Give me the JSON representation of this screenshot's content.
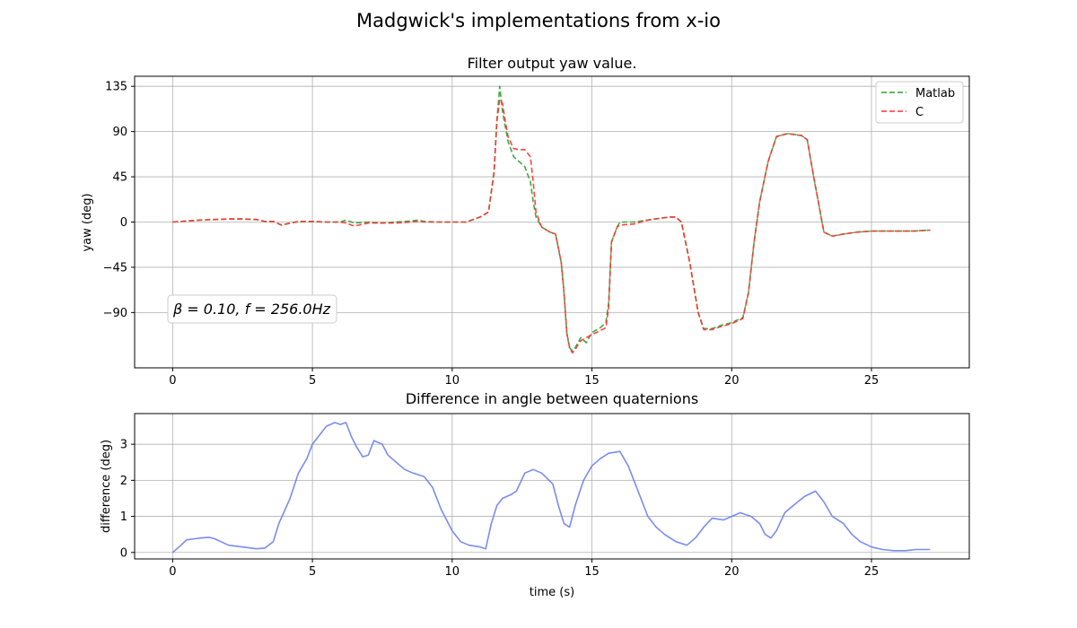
{
  "figure": {
    "suptitle": "Madgwick's implementations from x-io"
  },
  "chart_data": [
    {
      "type": "line",
      "title": "Filter output yaw value.",
      "xlabel": "",
      "ylabel": "yaw (deg)",
      "xlim": [
        -1.36,
        28.5
      ],
      "ylim": [
        -145,
        145
      ],
      "xticks": [
        0,
        5,
        10,
        15,
        20,
        25
      ],
      "yticks": [
        135,
        90,
        45,
        0,
        -45,
        -90
      ],
      "ytick_labels": [
        "135",
        "90",
        "45",
        "0",
        "−45",
        "−90"
      ],
      "grid": true,
      "legend_position": "upper-right",
      "annotation": "β = 0.10,  f = 256.0Hz",
      "series": [
        {
          "name": "Matlab",
          "color": "#2ca02c",
          "style": "dashed",
          "points": [
            [
              0,
              0
            ],
            [
              0.5,
              1
            ],
            [
              1,
              2
            ],
            [
              1.5,
              2.5
            ],
            [
              2,
              3
            ],
            [
              2.5,
              3
            ],
            [
              3,
              2.5
            ],
            [
              3.3,
              0.5
            ],
            [
              3.6,
              0.5
            ],
            [
              3.9,
              -3
            ],
            [
              4.2,
              -1
            ],
            [
              4.5,
              0.5
            ],
            [
              5,
              0.5
            ],
            [
              5.5,
              0
            ],
            [
              6,
              0
            ],
            [
              6.2,
              2
            ],
            [
              6.5,
              -1
            ],
            [
              7,
              0
            ],
            [
              7.5,
              -1
            ],
            [
              8,
              0
            ],
            [
              8.5,
              1
            ],
            [
              8.8,
              2
            ],
            [
              9,
              0.5
            ],
            [
              9.5,
              0
            ],
            [
              10,
              0
            ],
            [
              10.5,
              0
            ],
            [
              11,
              5
            ],
            [
              11.3,
              10
            ],
            [
              11.5,
              50
            ],
            [
              11.6,
              100
            ],
            [
              11.7,
              135
            ],
            [
              11.8,
              110
            ],
            [
              11.9,
              95
            ],
            [
              12,
              80
            ],
            [
              12.2,
              65
            ],
            [
              12.4,
              60
            ],
            [
              12.6,
              55
            ],
            [
              12.8,
              40
            ],
            [
              12.9,
              20
            ],
            [
              13,
              5
            ],
            [
              13.2,
              -5
            ],
            [
              13.5,
              -10
            ],
            [
              13.7,
              -12
            ],
            [
              13.9,
              -40
            ],
            [
              14,
              -70
            ],
            [
              14.1,
              -110
            ],
            [
              14.2,
              -125
            ],
            [
              14.3,
              -128
            ],
            [
              14.4,
              -125
            ],
            [
              14.5,
              -120
            ],
            [
              14.6,
              -115
            ],
            [
              14.8,
              -120
            ],
            [
              15,
              -110
            ],
            [
              15.3,
              -105
            ],
            [
              15.5,
              -100
            ],
            [
              15.6,
              -80
            ],
            [
              15.7,
              -20
            ],
            [
              15.9,
              -5
            ],
            [
              16,
              0
            ],
            [
              16.5,
              0
            ],
            [
              17,
              2
            ],
            [
              17.5,
              4
            ],
            [
              17.8,
              5
            ],
            [
              18,
              5
            ],
            [
              18.2,
              0
            ],
            [
              18.5,
              -40
            ],
            [
              18.8,
              -90
            ],
            [
              19,
              -106
            ],
            [
              19.3,
              -106
            ],
            [
              19.6,
              -103
            ],
            [
              20,
              -100
            ],
            [
              20.4,
              -95
            ],
            [
              20.6,
              -70
            ],
            [
              20.8,
              -20
            ],
            [
              21,
              20
            ],
            [
              21.3,
              60
            ],
            [
              21.6,
              85
            ],
            [
              22,
              88
            ],
            [
              22.5,
              86
            ],
            [
              22.7,
              82
            ],
            [
              22.9,
              50
            ],
            [
              23.1,
              20
            ],
            [
              23.3,
              -10
            ],
            [
              23.6,
              -14
            ],
            [
              24,
              -12
            ],
            [
              24.5,
              -10
            ],
            [
              25,
              -9
            ],
            [
              25.5,
              -9
            ],
            [
              26,
              -9
            ],
            [
              26.5,
              -9
            ],
            [
              27.1,
              -8
            ]
          ]
        },
        {
          "name": "C",
          "color": "#ff3030",
          "style": "dashed",
          "points": [
            [
              0,
              0
            ],
            [
              0.5,
              1
            ],
            [
              1,
              2
            ],
            [
              1.5,
              2.5
            ],
            [
              2,
              3
            ],
            [
              2.5,
              3
            ],
            [
              3,
              2.5
            ],
            [
              3.3,
              0.5
            ],
            [
              3.6,
              0.5
            ],
            [
              3.9,
              -3
            ],
            [
              4.2,
              -1
            ],
            [
              4.5,
              0.5
            ],
            [
              5,
              0.5
            ],
            [
              5.5,
              0
            ],
            [
              6,
              0
            ],
            [
              6.2,
              -1
            ],
            [
              6.5,
              -4
            ],
            [
              7,
              -1
            ],
            [
              7.5,
              -1
            ],
            [
              8,
              -1
            ],
            [
              8.5,
              0
            ],
            [
              8.8,
              0.5
            ],
            [
              9,
              0
            ],
            [
              9.5,
              0
            ],
            [
              10,
              0
            ],
            [
              10.5,
              0
            ],
            [
              11,
              5
            ],
            [
              11.3,
              10
            ],
            [
              11.5,
              50
            ],
            [
              11.6,
              100
            ],
            [
              11.7,
              122
            ],
            [
              11.8,
              118
            ],
            [
              11.9,
              100
            ],
            [
              12,
              85
            ],
            [
              12.2,
              73
            ],
            [
              12.4,
              72
            ],
            [
              12.6,
              72
            ],
            [
              12.8,
              65
            ],
            [
              12.9,
              40
            ],
            [
              13,
              10
            ],
            [
              13.2,
              -5
            ],
            [
              13.5,
              -10
            ],
            [
              13.7,
              -12
            ],
            [
              13.9,
              -40
            ],
            [
              14,
              -70
            ],
            [
              14.1,
              -110
            ],
            [
              14.2,
              -125
            ],
            [
              14.3,
              -130
            ],
            [
              14.4,
              -127
            ],
            [
              14.5,
              -122
            ],
            [
              14.6,
              -118
            ],
            [
              14.8,
              -115
            ],
            [
              15,
              -112
            ],
            [
              15.3,
              -108
            ],
            [
              15.5,
              -105
            ],
            [
              15.6,
              -85
            ],
            [
              15.7,
              -20
            ],
            [
              15.9,
              -5
            ],
            [
              16,
              -3
            ],
            [
              16.5,
              -2
            ],
            [
              17,
              2
            ],
            [
              17.5,
              4
            ],
            [
              17.8,
              5
            ],
            [
              18,
              5
            ],
            [
              18.2,
              0
            ],
            [
              18.5,
              -40
            ],
            [
              18.8,
              -90
            ],
            [
              19,
              -107
            ],
            [
              19.3,
              -107
            ],
            [
              19.6,
              -104
            ],
            [
              20,
              -101
            ],
            [
              20.4,
              -96
            ],
            [
              20.6,
              -70
            ],
            [
              20.8,
              -20
            ],
            [
              21,
              20
            ],
            [
              21.3,
              60
            ],
            [
              21.6,
              85
            ],
            [
              22,
              88
            ],
            [
              22.5,
              86
            ],
            [
              22.7,
              82
            ],
            [
              22.9,
              50
            ],
            [
              23.1,
              20
            ],
            [
              23.3,
              -10
            ],
            [
              23.6,
              -14
            ],
            [
              24,
              -12
            ],
            [
              24.5,
              -10
            ],
            [
              25,
              -9
            ],
            [
              25.5,
              -9
            ],
            [
              26,
              -9
            ],
            [
              26.5,
              -9
            ],
            [
              27.1,
              -8
            ]
          ]
        }
      ]
    },
    {
      "type": "line",
      "title": "Difference in angle between quaternions",
      "xlabel": "time (s)",
      "ylabel": "difference (deg)",
      "xlim": [
        -1.36,
        28.5
      ],
      "ylim": [
        -0.18,
        3.85
      ],
      "xticks": [
        0,
        5,
        10,
        15,
        20,
        25
      ],
      "yticks": [
        0,
        1,
        2,
        3
      ],
      "grid": true,
      "series": [
        {
          "color": "#6b7ff0",
          "style": "solid",
          "points": [
            [
              0,
              0
            ],
            [
              0.3,
              0.2
            ],
            [
              0.5,
              0.35
            ],
            [
              0.8,
              0.38
            ],
            [
              1,
              0.4
            ],
            [
              1.3,
              0.42
            ],
            [
              1.5,
              0.38
            ],
            [
              2,
              0.2
            ],
            [
              2.5,
              0.15
            ],
            [
              3,
              0.1
            ],
            [
              3.3,
              0.12
            ],
            [
              3.6,
              0.3
            ],
            [
              3.8,
              0.8
            ],
            [
              4.2,
              1.5
            ],
            [
              4.5,
              2.2
            ],
            [
              4.8,
              2.6
            ],
            [
              5,
              3
            ],
            [
              5.3,
              3.3
            ],
            [
              5.5,
              3.5
            ],
            [
              5.8,
              3.6
            ],
            [
              6,
              3.55
            ],
            [
              6.2,
              3.6
            ],
            [
              6.4,
              3.2
            ],
            [
              6.6,
              2.9
            ],
            [
              6.8,
              2.65
            ],
            [
              7,
              2.7
            ],
            [
              7.2,
              3.1
            ],
            [
              7.5,
              3
            ],
            [
              7.7,
              2.7
            ],
            [
              8,
              2.5
            ],
            [
              8.3,
              2.3
            ],
            [
              8.6,
              2.2
            ],
            [
              9,
              2.1
            ],
            [
              9.3,
              1.8
            ],
            [
              9.6,
              1.2
            ],
            [
              10,
              0.6
            ],
            [
              10.3,
              0.3
            ],
            [
              10.6,
              0.2
            ],
            [
              11,
              0.15
            ],
            [
              11.2,
              0.1
            ],
            [
              11.4,
              0.8
            ],
            [
              11.6,
              1.3
            ],
            [
              11.8,
              1.5
            ],
            [
              12.1,
              1.6
            ],
            [
              12.3,
              1.7
            ],
            [
              12.6,
              2.2
            ],
            [
              12.9,
              2.3
            ],
            [
              13.2,
              2.2
            ],
            [
              13.6,
              1.9
            ],
            [
              13.8,
              1.3
            ],
            [
              14,
              0.8
            ],
            [
              14.2,
              0.7
            ],
            [
              14.4,
              1.3
            ],
            [
              14.7,
              2
            ],
            [
              15,
              2.4
            ],
            [
              15.3,
              2.6
            ],
            [
              15.6,
              2.75
            ],
            [
              16,
              2.8
            ],
            [
              16.3,
              2.4
            ],
            [
              16.6,
              1.8
            ],
            [
              17,
              1
            ],
            [
              17.3,
              0.7
            ],
            [
              17.6,
              0.5
            ],
            [
              18,
              0.3
            ],
            [
              18.4,
              0.2
            ],
            [
              18.7,
              0.4
            ],
            [
              19,
              0.7
            ],
            [
              19.3,
              0.95
            ],
            [
              19.7,
              0.9
            ],
            [
              20,
              1
            ],
            [
              20.3,
              1.1
            ],
            [
              20.7,
              1
            ],
            [
              21,
              0.8
            ],
            [
              21.2,
              0.5
            ],
            [
              21.4,
              0.4
            ],
            [
              21.6,
              0.6
            ],
            [
              21.9,
              1.1
            ],
            [
              22.2,
              1.3
            ],
            [
              22.6,
              1.55
            ],
            [
              23,
              1.7
            ],
            [
              23.3,
              1.4
            ],
            [
              23.6,
              1
            ],
            [
              24,
              0.8
            ],
            [
              24.3,
              0.5
            ],
            [
              24.6,
              0.3
            ],
            [
              25,
              0.15
            ],
            [
              25.4,
              0.08
            ],
            [
              25.8,
              0.05
            ],
            [
              26.2,
              0.05
            ],
            [
              26.6,
              0.08
            ],
            [
              27.1,
              0.08
            ]
          ]
        }
      ]
    }
  ]
}
